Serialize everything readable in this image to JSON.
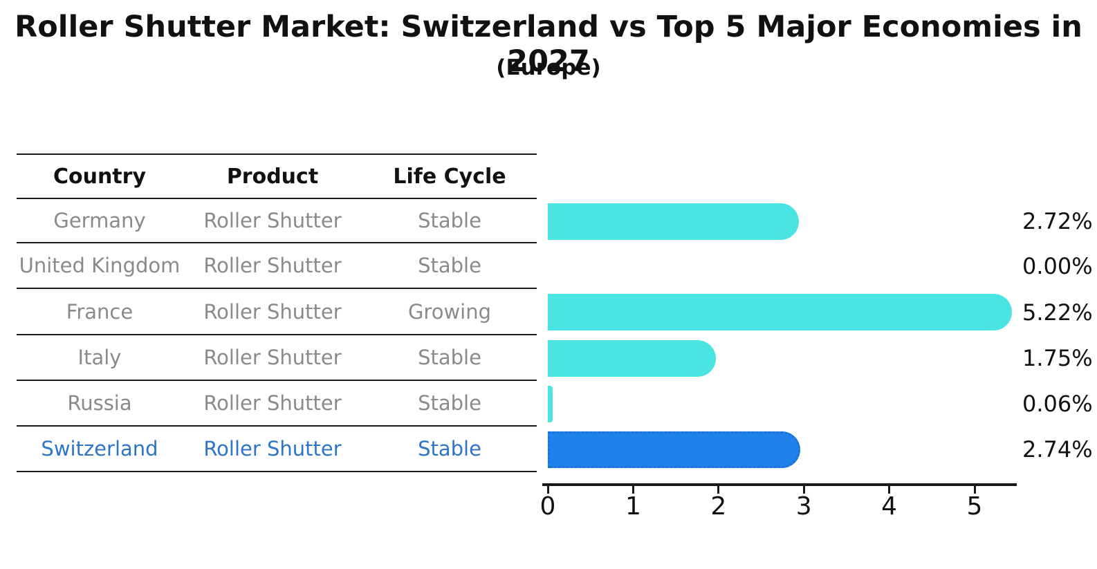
{
  "title": "Roller Shutter Market: Switzerland vs Top 5 Major Economies in 2027",
  "subtitle": "(Europe)",
  "colors": {
    "bar_cyan": "#4AE5E3",
    "bar_highlight_fill": "#1E82EA",
    "bar_highlight_border": "#1D6FD4",
    "highlight_text": "#2E75C8",
    "row_text": "#8A8A8A",
    "header_text": "#111111",
    "line": "#1a1a1a"
  },
  "table": {
    "headers": {
      "country": "Country",
      "product": "Product",
      "life_cycle": "Life Cycle"
    }
  },
  "chart_data": {
    "type": "bar",
    "orientation": "horizontal",
    "title": "Roller Shutter Market: Switzerland vs Top 5 Major Economies in 2027",
    "subtitle": "(Europe)",
    "categories": [
      "Germany",
      "United Kingdom",
      "France",
      "Italy",
      "Russia",
      "Switzerland"
    ],
    "values": [
      2.72,
      0.0,
      5.22,
      1.75,
      0.06,
      2.74
    ],
    "xlabel": "",
    "ylabel": "",
    "xlim": [
      0,
      5.5
    ],
    "x_ticks": [
      "0",
      "1",
      "2",
      "3",
      "4",
      "5"
    ],
    "grid": false,
    "legend": false,
    "rows": [
      {
        "country": "Germany",
        "product": "Roller Shutter",
        "life_cycle": "Stable",
        "value": 2.72,
        "label": "2.72%",
        "highlighted": false
      },
      {
        "country": "United Kingdom",
        "product": "Roller Shutter",
        "life_cycle": "Stable",
        "value": 0.0,
        "label": "0.00%",
        "highlighted": false
      },
      {
        "country": "France",
        "product": "Roller Shutter",
        "life_cycle": "Growing",
        "value": 5.22,
        "label": "5.22%",
        "highlighted": false
      },
      {
        "country": "Italy",
        "product": "Roller Shutter",
        "life_cycle": "Stable",
        "value": 1.75,
        "label": "1.75%",
        "highlighted": false
      },
      {
        "country": "Russia",
        "product": "Roller Shutter",
        "life_cycle": "Stable",
        "value": 0.06,
        "label": "0.06%",
        "highlighted": false
      },
      {
        "country": "Switzerland",
        "product": "Roller Shutter",
        "life_cycle": "Stable",
        "value": 2.74,
        "label": "2.74%",
        "highlighted": true
      }
    ]
  }
}
